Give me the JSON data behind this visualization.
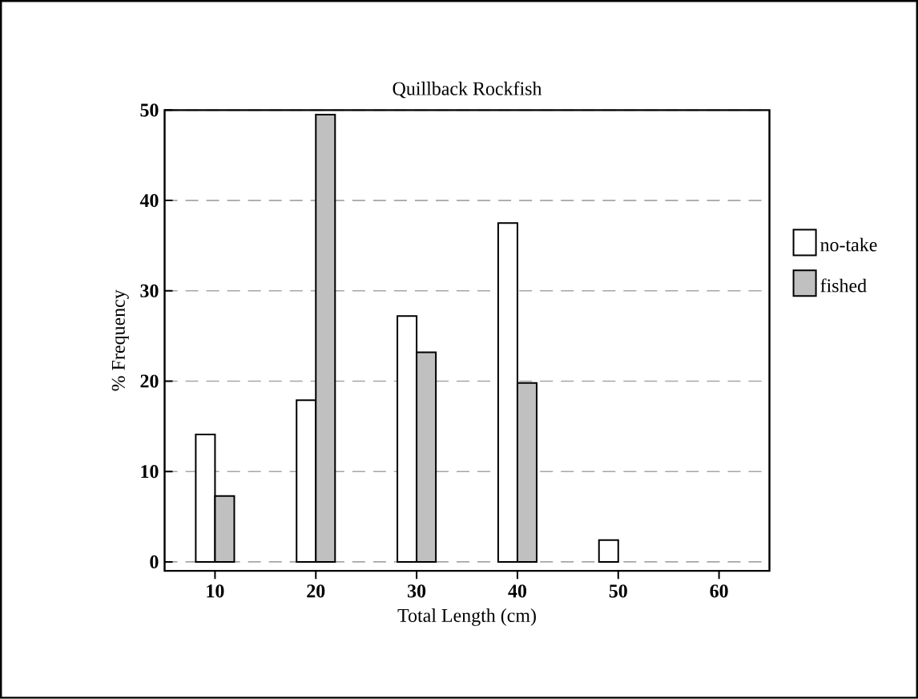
{
  "chart_data": {
    "type": "bar",
    "title": "Quillback Rockfish",
    "xlabel": "Total Length (cm)",
    "ylabel": "% Frequency",
    "categories": [
      "10",
      "20",
      "30",
      "40",
      "50",
      "60"
    ],
    "series": [
      {
        "name": "no-take",
        "color": "#ffffff",
        "values": [
          14.1,
          17.9,
          27.2,
          37.5,
          2.4,
          null
        ]
      },
      {
        "name": "fished",
        "color": "#c0c0c0",
        "values": [
          7.3,
          49.5,
          23.2,
          19.8,
          null,
          null
        ]
      }
    ],
    "ylim": [
      -1,
      50
    ],
    "yticks": [
      0,
      10,
      20,
      30,
      40,
      50
    ],
    "grid": "y",
    "legend": "right"
  }
}
